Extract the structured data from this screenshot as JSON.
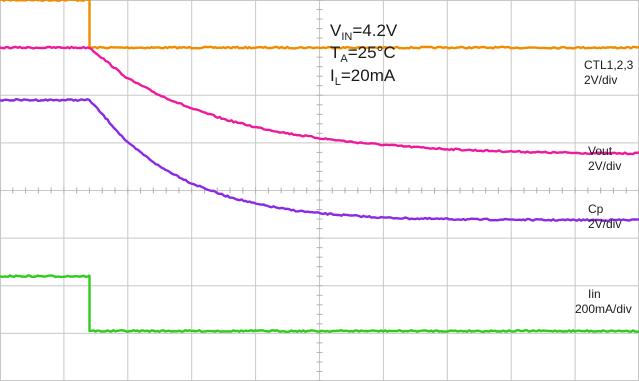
{
  "chart_data": {
    "type": "line",
    "title": "",
    "x_divisions": 10,
    "y_divisions": 8,
    "grid": true,
    "conditions": {
      "vin": {
        "symbol": "V",
        "subscript": "IN",
        "value": "=4.2V"
      },
      "ta": {
        "symbol": "T",
        "subscript": "A",
        "value": "=25°C"
      },
      "il": {
        "symbol": "I",
        "subscript": "L",
        "value": "=20mA"
      }
    },
    "series": [
      {
        "name": "CTL1,2,3",
        "scale": "2V/div",
        "color": "#f08c00",
        "x": [
          0,
          1.4,
          1.4,
          10
        ],
        "y": [
          8.0,
          8.0,
          7.0,
          7.0
        ]
      },
      {
        "name": "Vout",
        "scale": "2V/div",
        "color": "#ee1a9c",
        "x": [
          0,
          1.4,
          2.0,
          2.5,
          3.0,
          3.5,
          4.0,
          4.5,
          5.0,
          5.5,
          6.0,
          6.5,
          7.0,
          7.5,
          8.0,
          8.5,
          9.0,
          9.5,
          10
        ],
        "y": [
          7.0,
          7.0,
          6.35,
          6.0,
          5.72,
          5.5,
          5.33,
          5.2,
          5.1,
          5.02,
          4.96,
          4.91,
          4.87,
          4.84,
          4.82,
          4.8,
          4.79,
          4.78,
          4.78
        ]
      },
      {
        "name": "Cp",
        "scale": "2V/div",
        "color": "#8a2be2",
        "x": [
          0,
          1.4,
          2.0,
          2.5,
          3.0,
          3.5,
          4.0,
          4.5,
          5.0,
          5.5,
          6.0,
          6.5,
          7.0,
          7.5,
          8.0,
          8.5,
          9.0,
          9.5,
          10
        ],
        "y": [
          5.9,
          5.9,
          5.0,
          4.5,
          4.15,
          3.9,
          3.72,
          3.6,
          3.52,
          3.47,
          3.43,
          3.41,
          3.4,
          3.39,
          3.39,
          3.38,
          3.38,
          3.38,
          3.38
        ]
      },
      {
        "name": "Iin",
        "scale": "200mA/div",
        "color": "#2ecc1a",
        "x": [
          0,
          1.4,
          1.4,
          10
        ],
        "y": [
          2.2,
          2.2,
          1.05,
          1.05
        ]
      }
    ]
  }
}
